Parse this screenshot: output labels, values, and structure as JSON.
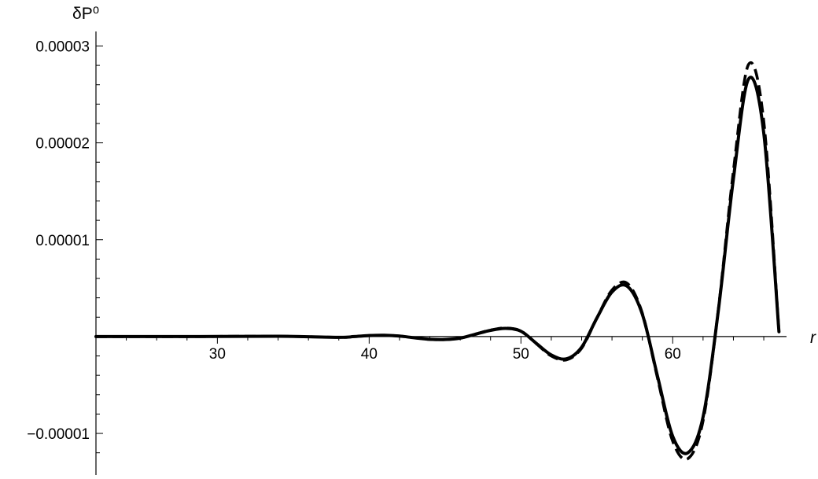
{
  "chart_data": {
    "type": "line",
    "title": "",
    "xlabel": "r",
    "ylabel": "δP⁰",
    "xlim": [
      22.0,
      67.5
    ],
    "ylim": [
      -1.43e-05,
      3.15e-05
    ],
    "x_ticks": [
      30,
      40,
      50,
      60
    ],
    "x_tick_labels": [
      "30",
      "40",
      "50",
      "60"
    ],
    "y_ticks": [
      -1e-05,
      1e-05,
      2e-05,
      3e-05
    ],
    "y_tick_labels": [
      "-0.00001",
      "0.00001",
      "0.00002",
      "0.00003"
    ],
    "grid": false,
    "legend": "none",
    "series": [
      {
        "style": "solid",
        "color": "#000000",
        "x": [
          22,
          28,
          34,
          38,
          39,
          40,
          41,
          42,
          43,
          44,
          45,
          46,
          47,
          48,
          49,
          50,
          51,
          52,
          53,
          54,
          55,
          56,
          57,
          58,
          59,
          60,
          61,
          62,
          63,
          64,
          65,
          66,
          67
        ],
        "y": [
          0,
          0,
          3e-08,
          -8e-08,
          0,
          1e-07,
          1.3e-07,
          5e-08,
          -1.3e-07,
          -2.8e-07,
          -3e-07,
          -1.6e-07,
          2.4e-07,
          6.4e-07,
          8.4e-07,
          5.5e-07,
          -6.8e-07,
          -1.9e-06,
          -2.3e-06,
          -1.1e-06,
          1.9e-06,
          4.6e-06,
          5.2e-06,
          2.3e-06,
          -4.1e-06,
          -1.03e-05,
          -1.2e-05,
          -8.3e-06,
          2.6e-06,
          1.63e-05,
          2.66e-05,
          2.1e-05,
          5e-07
        ]
      },
      {
        "style": "dashed",
        "color": "#000000",
        "x": [
          22,
          28,
          34,
          38,
          39,
          40,
          41,
          42,
          43,
          44,
          45,
          46,
          47,
          48,
          49,
          50,
          51,
          52,
          53,
          54,
          55,
          56,
          57,
          58,
          59,
          60,
          61,
          62,
          63,
          64,
          65,
          66,
          67
        ],
        "y": [
          0,
          0,
          3e-08,
          -8e-08,
          0,
          1e-07,
          1.3e-07,
          5e-08,
          -1.3e-07,
          -2.9e-07,
          -3.1e-07,
          -1.7e-07,
          2.5e-07,
          6.7e-07,
          8.8e-07,
          5.8e-07,
          -7.2e-07,
          -2e-06,
          -2.4e-06,
          -1.2e-06,
          1.9e-06,
          4.8e-06,
          5.5e-06,
          2.4e-06,
          -4.3e-06,
          -1.08e-05,
          -1.26e-05,
          -8.7e-06,
          2.7e-06,
          1.71e-05,
          2.81e-05,
          2.22e-05,
          5e-07
        ]
      }
    ]
  }
}
